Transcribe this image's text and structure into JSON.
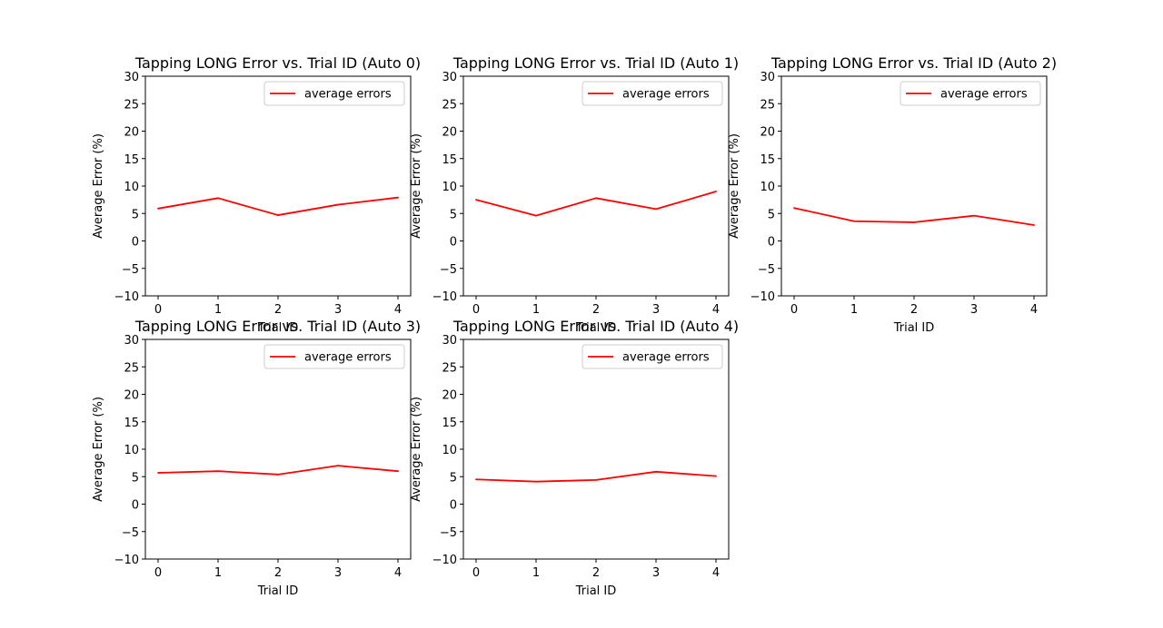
{
  "chart_data": [
    {
      "type": "line",
      "title": "Tapping LONG Error vs. Trial ID (Auto 0)",
      "xlabel": "Trial ID",
      "ylabel": "Average Error (%)",
      "x": [
        0,
        1,
        2,
        3,
        4
      ],
      "series": [
        {
          "name": "average errors",
          "color": "#ff0000",
          "values": [
            5.9,
            7.8,
            4.7,
            6.6,
            7.9
          ]
        }
      ],
      "ylim": [
        -10,
        30
      ],
      "xticks": [
        "0",
        "1",
        "2",
        "3",
        "4"
      ],
      "yticks": [
        "−10",
        "−5",
        "0",
        "5",
        "10",
        "15",
        "20",
        "25",
        "30"
      ],
      "legend": "upper right",
      "grid": false
    },
    {
      "type": "line",
      "title": "Tapping LONG Error vs. Trial ID (Auto 1)",
      "xlabel": "Trial ID",
      "ylabel": "Average Error (%)",
      "x": [
        0,
        1,
        2,
        3,
        4
      ],
      "series": [
        {
          "name": "average errors",
          "color": "#ff0000",
          "values": [
            7.5,
            4.6,
            7.8,
            5.8,
            9.0
          ]
        }
      ],
      "ylim": [
        -10,
        30
      ],
      "xticks": [
        "0",
        "1",
        "2",
        "3",
        "4"
      ],
      "yticks": [
        "−10",
        "−5",
        "0",
        "5",
        "10",
        "15",
        "20",
        "25",
        "30"
      ],
      "legend": "upper right",
      "grid": false
    },
    {
      "type": "line",
      "title": "Tapping LONG Error vs. Trial ID (Auto 2)",
      "xlabel": "Trial ID",
      "ylabel": "Average Error (%)",
      "x": [
        0,
        1,
        2,
        3,
        4
      ],
      "series": [
        {
          "name": "average errors",
          "color": "#ff0000",
          "values": [
            6.0,
            3.6,
            3.4,
            4.6,
            2.9
          ]
        }
      ],
      "ylim": [
        -10,
        30
      ],
      "xticks": [
        "0",
        "1",
        "2",
        "3",
        "4"
      ],
      "yticks": [
        "−10",
        "−5",
        "0",
        "5",
        "10",
        "15",
        "20",
        "25",
        "30"
      ],
      "legend": "upper right",
      "grid": false
    },
    {
      "type": "line",
      "title": "Tapping LONG Error vs. Trial ID (Auto 3)",
      "xlabel": "Trial ID",
      "ylabel": "Average Error (%)",
      "x": [
        0,
        1,
        2,
        3,
        4
      ],
      "series": [
        {
          "name": "average errors",
          "color": "#ff0000",
          "values": [
            5.7,
            6.0,
            5.4,
            7.0,
            6.0
          ]
        }
      ],
      "ylim": [
        -10,
        30
      ],
      "xticks": [
        "0",
        "1",
        "2",
        "3",
        "4"
      ],
      "yticks": [
        "−10",
        "−5",
        "0",
        "5",
        "10",
        "15",
        "20",
        "25",
        "30"
      ],
      "legend": "upper right",
      "grid": false
    },
    {
      "type": "line",
      "title": "Tapping LONG Error vs. Trial ID (Auto 4)",
      "xlabel": "Trial ID",
      "ylabel": "Average Error (%)",
      "x": [
        0,
        1,
        2,
        3,
        4
      ],
      "series": [
        {
          "name": "average errors",
          "color": "#ff0000",
          "values": [
            4.5,
            4.1,
            4.4,
            5.9,
            5.1
          ]
        }
      ],
      "ylim": [
        -10,
        30
      ],
      "xticks": [
        "0",
        "1",
        "2",
        "3",
        "4"
      ],
      "yticks": [
        "−10",
        "−5",
        "0",
        "5",
        "10",
        "15",
        "20",
        "25",
        "30"
      ],
      "legend": "upper right",
      "grid": false
    }
  ]
}
